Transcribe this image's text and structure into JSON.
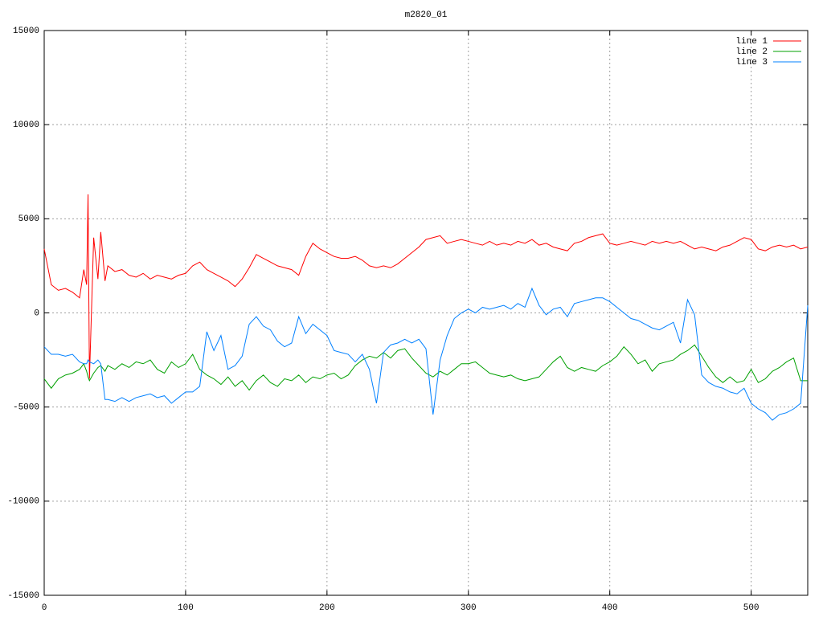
{
  "chart_data": {
    "type": "line",
    "title": "m2820_01",
    "x": [
      0,
      5,
      10,
      15,
      20,
      25,
      28,
      30,
      31,
      32,
      35,
      38,
      40,
      43,
      45,
      50,
      55,
      60,
      65,
      70,
      75,
      80,
      85,
      90,
      95,
      100,
      105,
      110,
      115,
      120,
      125,
      130,
      135,
      140,
      145,
      150,
      155,
      160,
      165,
      170,
      175,
      180,
      185,
      190,
      195,
      200,
      205,
      210,
      215,
      220,
      225,
      230,
      235,
      240,
      245,
      250,
      255,
      260,
      265,
      270,
      275,
      280,
      285,
      290,
      295,
      300,
      305,
      310,
      315,
      320,
      325,
      330,
      335,
      340,
      345,
      350,
      355,
      360,
      365,
      370,
      375,
      380,
      385,
      390,
      395,
      400,
      405,
      410,
      415,
      420,
      425,
      430,
      435,
      440,
      445,
      450,
      455,
      460,
      465,
      470,
      475,
      480,
      485,
      490,
      495,
      500,
      505,
      510,
      515,
      520,
      525,
      530,
      535,
      540
    ],
    "series": [
      {
        "name": "line 1",
        "color": "#ff0000",
        "values": [
          3400,
          1500,
          1200,
          1300,
          1100,
          800,
          2300,
          1500,
          6300,
          -3500,
          4000,
          1800,
          4300,
          1700,
          2500,
          2200,
          2300,
          2000,
          1900,
          2100,
          1800,
          2000,
          1900,
          1800,
          2000,
          2100,
          2500,
          2700,
          2300,
          2100,
          1900,
          1700,
          1400,
          1800,
          2400,
          3100,
          2900,
          2700,
          2500,
          2400,
          2300,
          2000,
          3000,
          3700,
          3400,
          3200,
          3000,
          2900,
          2900,
          3000,
          2800,
          2500,
          2400,
          2500,
          2400,
          2600,
          2900,
          3200,
          3500,
          3900,
          4000,
          4100,
          3700,
          3800,
          3900,
          3800,
          3700,
          3600,
          3800,
          3600,
          3700,
          3600,
          3800,
          3700,
          3900,
          3600,
          3700,
          3500,
          3400,
          3300,
          3700,
          3800,
          4000,
          4100,
          4200,
          3700,
          3600,
          3700,
          3800,
          3700,
          3600,
          3800,
          3700,
          3800,
          3700,
          3800,
          3600,
          3400,
          3500,
          3400,
          3300,
          3500,
          3600,
          3800,
          4000,
          3900,
          3400,
          3300,
          3500,
          3600,
          3500,
          3600,
          3400,
          3500
        ]
      },
      {
        "name": "line 2",
        "color": "#00a000",
        "values": [
          -3500,
          -4000,
          -3500,
          -3300,
          -3200,
          -3000,
          -2700,
          -3100,
          -3400,
          -3600,
          -3200,
          -2900,
          -2800,
          -3100,
          -2800,
          -3000,
          -2700,
          -2900,
          -2600,
          -2700,
          -2500,
          -3000,
          -3200,
          -2600,
          -2900,
          -2700,
          -2200,
          -3000,
          -3300,
          -3500,
          -3800,
          -3400,
          -3900,
          -3600,
          -4100,
          -3600,
          -3300,
          -3700,
          -3900,
          -3500,
          -3600,
          -3300,
          -3700,
          -3400,
          -3500,
          -3300,
          -3200,
          -3500,
          -3300,
          -2800,
          -2500,
          -2300,
          -2400,
          -2100,
          -2400,
          -2000,
          -1900,
          -2400,
          -2800,
          -3200,
          -3400,
          -3100,
          -3300,
          -3000,
          -2700,
          -2700,
          -2600,
          -2900,
          -3200,
          -3300,
          -3400,
          -3300,
          -3500,
          -3600,
          -3500,
          -3400,
          -3000,
          -2600,
          -2300,
          -2900,
          -3100,
          -2900,
          -3000,
          -3100,
          -2800,
          -2600,
          -2300,
          -1800,
          -2200,
          -2700,
          -2500,
          -3100,
          -2700,
          -2600,
          -2500,
          -2200,
          -2000,
          -1700,
          -2300,
          -2900,
          -3400,
          -3700,
          -3400,
          -3700,
          -3600,
          -3000,
          -3700,
          -3500,
          -3100,
          -2900,
          -2600,
          -2400,
          -3600,
          -3600
        ]
      },
      {
        "name": "line 3",
        "color": "#0080ff",
        "values": [
          -1800,
          -2200,
          -2200,
          -2300,
          -2200,
          -2600,
          -2700,
          -2700,
          -2500,
          -2600,
          -2700,
          -2500,
          -2700,
          -4600,
          -4600,
          -4700,
          -4500,
          -4700,
          -4500,
          -4400,
          -4300,
          -4500,
          -4400,
          -4800,
          -4500,
          -4200,
          -4200,
          -3900,
          -1000,
          -2000,
          -1200,
          -3000,
          -2800,
          -2300,
          -600,
          -200,
          -700,
          -900,
          -1500,
          -1800,
          -1600,
          -200,
          -1100,
          -600,
          -900,
          -1200,
          -2000,
          -2100,
          -2200,
          -2600,
          -2200,
          -3000,
          -4800,
          -2100,
          -1700,
          -1600,
          -1400,
          -1600,
          -1400,
          -1900,
          -5400,
          -2500,
          -1200,
          -300,
          0,
          200,
          0,
          300,
          200,
          300,
          400,
          200,
          500,
          300,
          1300,
          400,
          -100,
          200,
          300,
          -200,
          500,
          600,
          700,
          800,
          800,
          600,
          300,
          0,
          -300,
          -400,
          -600,
          -800,
          -900,
          -700,
          -500,
          -1600,
          700,
          -100,
          -3300,
          -3700,
          -3900,
          -4000,
          -4200,
          -4300,
          -4000,
          -4800,
          -5100,
          -5300,
          -5700,
          -5400,
          -5300,
          -5100,
          -4800,
          400
        ]
      }
    ],
    "xlim": [
      0,
      540
    ],
    "ylim": [
      -15000,
      15000
    ],
    "xticks": [
      0,
      100,
      200,
      300,
      400,
      500
    ],
    "yticks": [
      -15000,
      -10000,
      -5000,
      0,
      5000,
      10000,
      15000
    ],
    "grid": true,
    "legend": "top-right"
  }
}
